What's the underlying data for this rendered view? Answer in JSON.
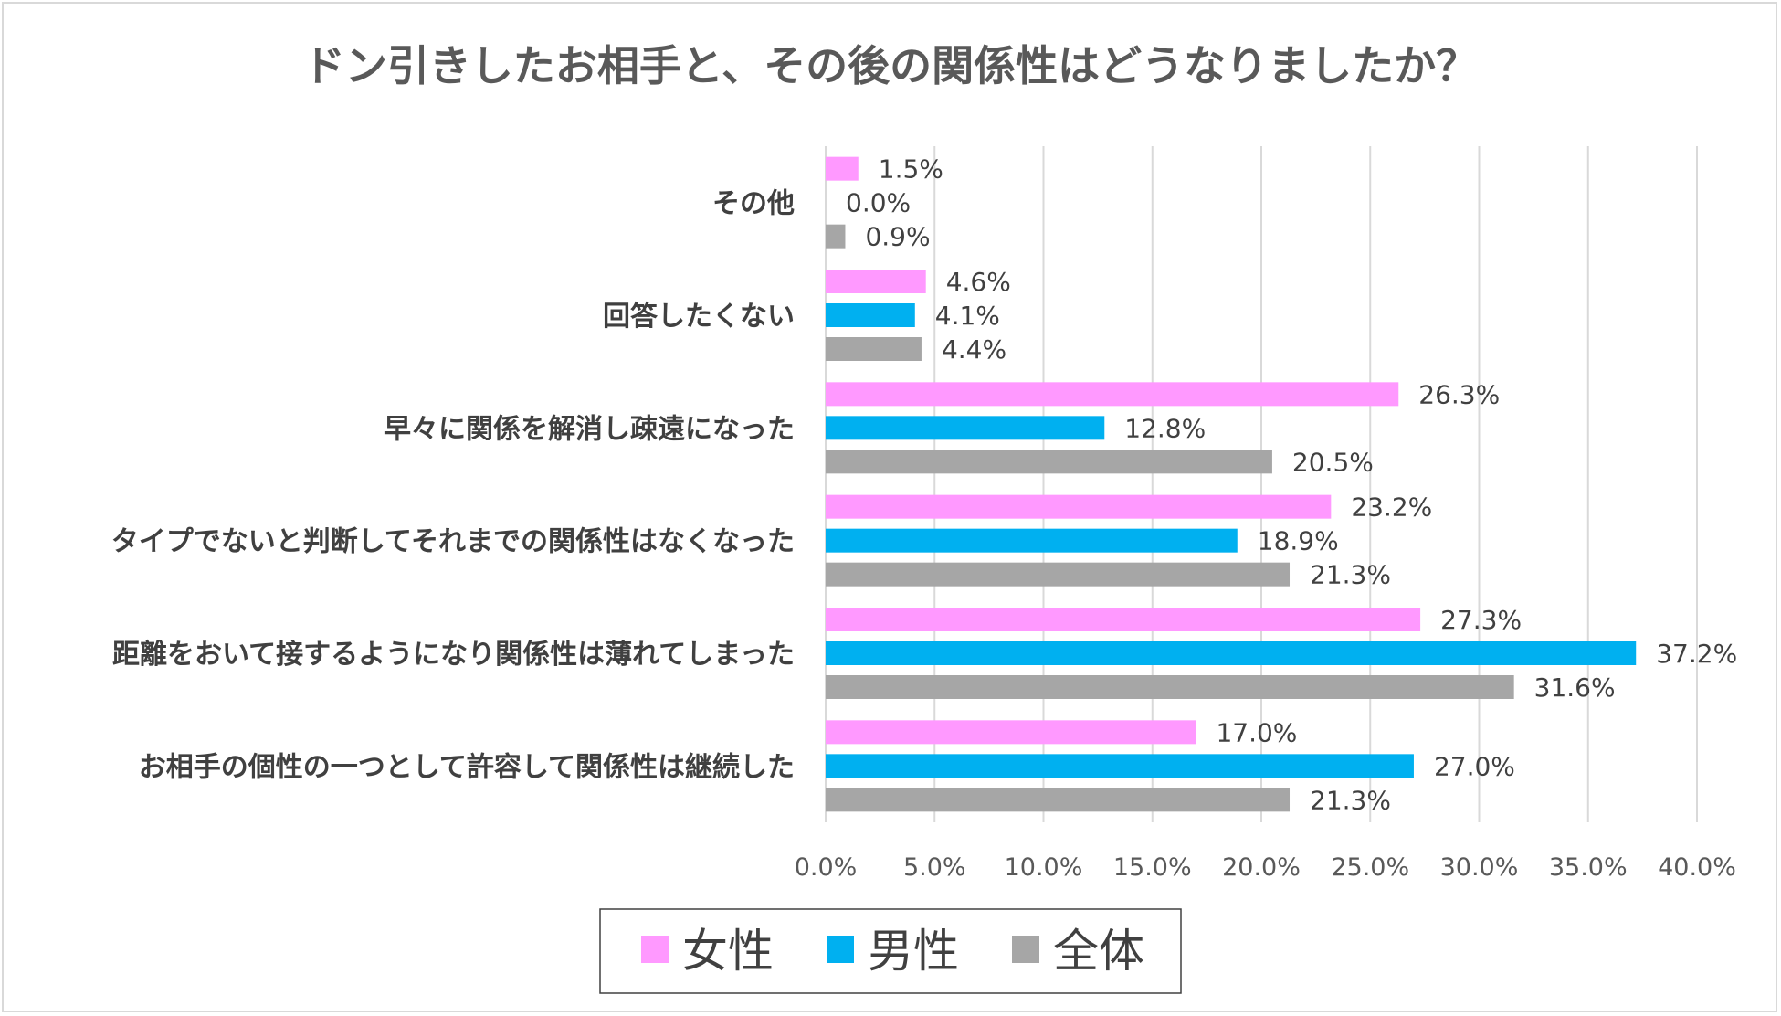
{
  "chart_data": {
    "type": "bar",
    "orientation": "horizontal",
    "title": "ドン引きしたお相手と、その後の関係性はどうなりましたか？",
    "categories": [
      "その他",
      "回答したくない",
      "早々に関係を解消し疎遠になった",
      "タイプでないと判断してそれまでの関係性はなくなった",
      "距離をおいて接するようになり関係性は薄れてしまった",
      "お相手の個性の一つとして許容して関係性は継続した"
    ],
    "series": [
      {
        "name": "女性",
        "color": "#ff99ff",
        "values": [
          1.5,
          4.6,
          26.3,
          23.2,
          27.3,
          17.0
        ]
      },
      {
        "name": "男性",
        "color": "#00b0f0",
        "values": [
          0.0,
          4.1,
          12.8,
          18.9,
          37.2,
          27.0
        ]
      },
      {
        "name": "全体",
        "color": "#a6a6a6",
        "values": [
          0.9,
          4.4,
          20.5,
          21.3,
          31.6,
          21.3
        ]
      }
    ],
    "data_labels": [
      [
        "1.5%",
        "4.6%",
        "26.3%",
        "23.2%",
        "27.3%",
        "17.0%"
      ],
      [
        "0.0%",
        "4.1%",
        "12.8%",
        "18.9%",
        "37.2%",
        "27.0%"
      ],
      [
        "0.9%",
        "4.4%",
        "20.5%",
        "21.3%",
        "31.6%",
        "21.3%"
      ]
    ],
    "xlim": [
      0,
      40
    ],
    "x_ticks": [
      0,
      5,
      10,
      15,
      20,
      25,
      30,
      35,
      40
    ],
    "x_tick_labels": [
      "0.0%",
      "5.0%",
      "10.0%",
      "15.0%",
      "20.0%",
      "25.0%",
      "30.0%",
      "35.0%",
      "40.0%"
    ],
    "grid": "vertical",
    "legend_position": "bottom"
  }
}
